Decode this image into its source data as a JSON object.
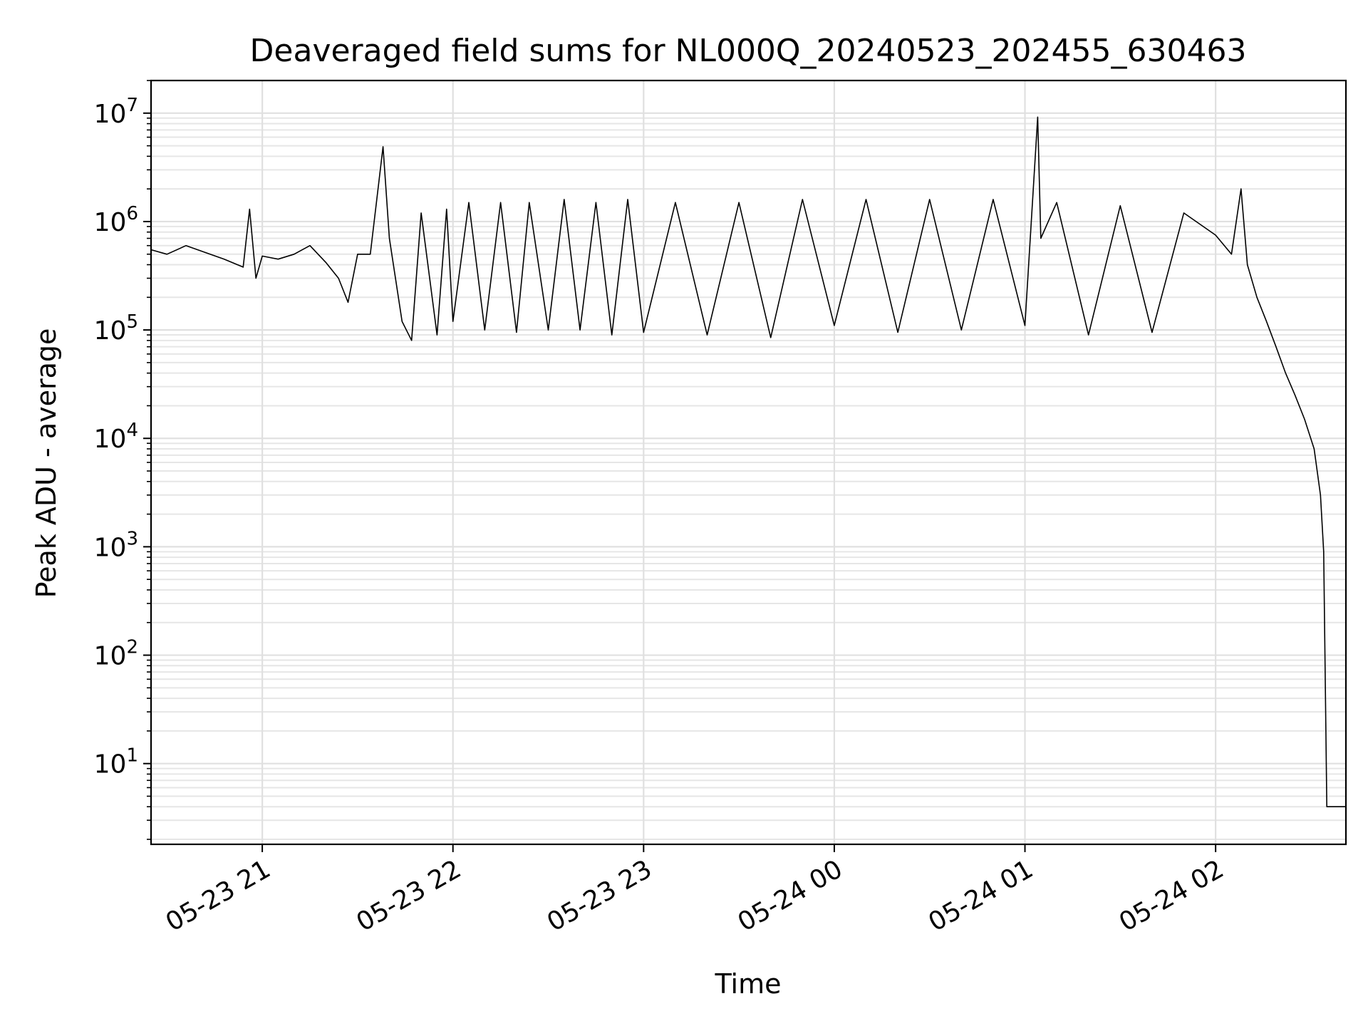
{
  "chart_data": {
    "type": "line",
    "title": "Deaveraged field sums for NL000Q_20240523_202455_630463",
    "xlabel": "Time",
    "ylabel": "Peak ADU - average",
    "yscale": "log",
    "ylim": [
      1.8,
      20000000
    ],
    "xlim": [
      "2024-05-23 20:25",
      "2024-05-24 02:41"
    ],
    "grid": "on",
    "line_color": "#000000",
    "x_ticks": [
      {
        "value": "2024-05-23 21:00",
        "label": "05-23 21"
      },
      {
        "value": "2024-05-23 22:00",
        "label": "05-23 22"
      },
      {
        "value": "2024-05-23 23:00",
        "label": "05-23 23"
      },
      {
        "value": "2024-05-24 00:00",
        "label": "05-24 00"
      },
      {
        "value": "2024-05-24 01:00",
        "label": "05-24 01"
      },
      {
        "value": "2024-05-24 02:00",
        "label": "05-24 02"
      }
    ],
    "y_ticks": [
      {
        "value": 10,
        "base": "10",
        "exp": "1"
      },
      {
        "value": 100,
        "base": "10",
        "exp": "2"
      },
      {
        "value": 1000,
        "base": "10",
        "exp": "3"
      },
      {
        "value": 10000,
        "base": "10",
        "exp": "4"
      },
      {
        "value": 100000,
        "base": "10",
        "exp": "5"
      },
      {
        "value": 1000000,
        "base": "10",
        "exp": "6"
      },
      {
        "value": 10000000,
        "base": "10",
        "exp": "7"
      }
    ],
    "series": [
      {
        "x": [
          "2024-05-23 20:25",
          "2024-05-23 20:30",
          "2024-05-23 20:36",
          "2024-05-23 20:42",
          "2024-05-23 20:48",
          "2024-05-23 20:54",
          "2024-05-23 20:56",
          "2024-05-23 20:58",
          "2024-05-23 21:00",
          "2024-05-23 21:05",
          "2024-05-23 21:10",
          "2024-05-23 21:15",
          "2024-05-23 21:20",
          "2024-05-23 21:24",
          "2024-05-23 21:27",
          "2024-05-23 21:30",
          "2024-05-23 21:34",
          "2024-05-23 21:38",
          "2024-05-23 21:40",
          "2024-05-23 21:44",
          "2024-05-23 21:47",
          "2024-05-23 21:50",
          "2024-05-23 21:55",
          "2024-05-23 21:58",
          "2024-05-23 22:00",
          "2024-05-23 22:05",
          "2024-05-23 22:10",
          "2024-05-23 22:15",
          "2024-05-23 22:20",
          "2024-05-23 22:24",
          "2024-05-23 22:30",
          "2024-05-23 22:35",
          "2024-05-23 22:40",
          "2024-05-23 22:45",
          "2024-05-23 22:50",
          "2024-05-23 22:55",
          "2024-05-23 23:00",
          "2024-05-23 23:10",
          "2024-05-23 23:20",
          "2024-05-23 23:30",
          "2024-05-23 23:40",
          "2024-05-23 23:50",
          "2024-05-24 00:00",
          "2024-05-24 00:10",
          "2024-05-24 00:20",
          "2024-05-24 00:30",
          "2024-05-24 00:40",
          "2024-05-24 00:50",
          "2024-05-24 01:00",
          "2024-05-24 01:04",
          "2024-05-24 01:05",
          "2024-05-24 01:10",
          "2024-05-24 01:20",
          "2024-05-24 01:30",
          "2024-05-24 01:40",
          "2024-05-24 01:50",
          "2024-05-24 02:00",
          "2024-05-24 02:05",
          "2024-05-24 02:08",
          "2024-05-24 02:10",
          "2024-05-24 02:13",
          "2024-05-24 02:16",
          "2024-05-24 02:19",
          "2024-05-24 02:22",
          "2024-05-24 02:25",
          "2024-05-24 02:28",
          "2024-05-24 02:31",
          "2024-05-24 02:33",
          "2024-05-24 02:34",
          "2024-05-24 02:35",
          "2024-05-24 02:41"
        ],
        "y": [
          550000,
          500000,
          600000,
          520000,
          450000,
          380000,
          1300000,
          300000,
          480000,
          450000,
          500000,
          600000,
          420000,
          300000,
          180000,
          500000,
          500000,
          4900000,
          700000,
          120000,
          80000,
          1200000,
          90000,
          1300000,
          120000,
          1500000,
          100000,
          1500000,
          95000,
          1500000,
          100000,
          1600000,
          100000,
          1500000,
          90000,
          1600000,
          95000,
          1500000,
          90000,
          1500000,
          85000,
          1600000,
          110000,
          1600000,
          95000,
          1600000,
          100000,
          1600000,
          110000,
          9200000,
          700000,
          1500000,
          90000,
          1400000,
          95000,
          1200000,
          750000,
          500000,
          2000000,
          400000,
          200000,
          120000,
          70000,
          40000,
          25000,
          15000,
          8000,
          3000,
          900,
          4,
          4
        ]
      }
    ]
  }
}
